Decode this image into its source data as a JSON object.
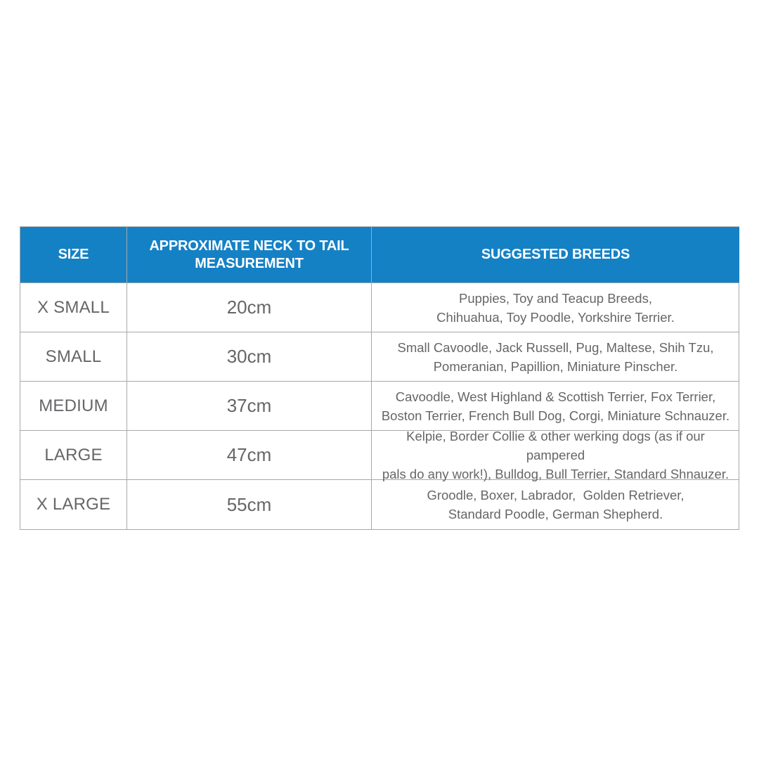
{
  "colors": {
    "header-bg": "#1581c5",
    "header-text": "#ffffff",
    "border": "#a6a8ab",
    "text": "#656668",
    "page-bg": "#ffffff"
  },
  "table": {
    "header": {
      "size": "SIZE",
      "measurement_lines": [
        "APPROXIMATE NECK TO TAIL",
        "MEASUREMENT"
      ],
      "breeds": "SUGGESTED BREEDS"
    },
    "rows": [
      {
        "size": "X SMALL",
        "measurement": "20cm",
        "breeds_lines": [
          "Puppies, Toy and Teacup Breeds,",
          "Chihuahua, Toy Poodle, Yorkshire Terrier."
        ]
      },
      {
        "size": "SMALL",
        "measurement": "30cm",
        "breeds_lines": [
          "Small Cavoodle, Jack Russell, Pug, Maltese, Shih Tzu,",
          "Pomeranian, Papillion, Miniature Pinscher."
        ]
      },
      {
        "size": "MEDIUM",
        "measurement": "37cm",
        "breeds_lines": [
          "Cavoodle, West Highland & Scottish Terrier, Fox Terrier,",
          "Boston Terrier, French Bull Dog, Corgi, Miniature Schnauzer."
        ]
      },
      {
        "size": "LARGE",
        "measurement": "47cm",
        "breeds_lines": [
          "Kelpie, Border Collie & other werking dogs (as if our pampered",
          "pals do any work!), Bulldog, Bull Terrier, Standard Shnauzer."
        ]
      },
      {
        "size": "X LARGE",
        "measurement": "55cm",
        "breeds_lines": [
          "Groodle, Boxer, Labrador,  Golden Retriever,",
          "Standard Poodle, German Shepherd."
        ]
      }
    ]
  },
  "chart_data": {
    "type": "table",
    "columns": [
      "SIZE",
      "APPROXIMATE NECK TO TAIL MEASUREMENT",
      "SUGGESTED BREEDS"
    ],
    "rows": [
      [
        "X SMALL",
        "20cm",
        "Puppies, Toy and Teacup Breeds, Chihuahua, Toy Poodle, Yorkshire Terrier."
      ],
      [
        "SMALL",
        "30cm",
        "Small Cavoodle, Jack Russell, Pug, Maltese, Shih Tzu, Pomeranian, Papillion, Miniature Pinscher."
      ],
      [
        "MEDIUM",
        "37cm",
        "Cavoodle, West Highland & Scottish Terrier, Fox Terrier, Boston Terrier, French Bull Dog, Corgi, Miniature Schnauzer."
      ],
      [
        "LARGE",
        "47cm",
        "Kelpie, Border Collie & other werking dogs (as if our pampered pals do any work!), Bulldog, Bull Terrier, Standard Shnauzer."
      ],
      [
        "X LARGE",
        "55cm",
        "Groodle, Boxer, Labrador, Golden Retriever, Standard Poodle, German Shepherd."
      ]
    ]
  }
}
